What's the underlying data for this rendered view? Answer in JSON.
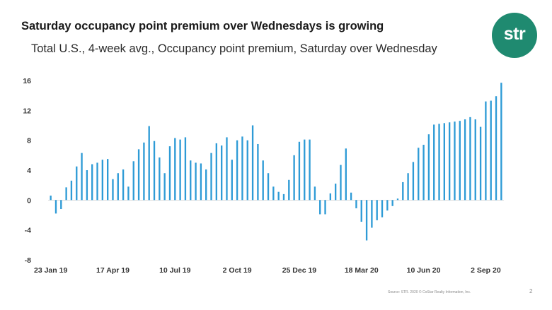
{
  "title": "Saturday occupancy point premium over Wednesdays is growing",
  "subtitle": "Total U.S., 4-week avg., Occupancy point premium, Saturday over Wednesday",
  "logo_text": "str",
  "footer": {
    "source": "Source: STR. 2020 © CoStar Realty Information, Inc.",
    "page": "2"
  },
  "colors": {
    "bar": "#2e9bd6",
    "logo": "#1f8a70",
    "zero_line": "#c8c8c8"
  },
  "chart_data": {
    "type": "bar",
    "ylim": [
      -8,
      16
    ],
    "yticks": [
      16,
      12,
      8,
      4,
      0,
      -4,
      -8
    ],
    "x_tick_labels": [
      "23 Jan 19",
      "17 Apr 19",
      "10 Jul 19",
      "2 Oct 19",
      "25 Dec 19",
      "18 Mar 20",
      "10 Jun 20",
      "2 Sep 20"
    ],
    "x_tick_index": [
      0,
      12,
      24,
      36,
      48,
      60,
      72,
      84
    ],
    "grid": false,
    "legend": "none",
    "values": [
      0.6,
      -1.8,
      -1.2,
      1.7,
      2.6,
      4.5,
      6.3,
      4.0,
      4.8,
      5.0,
      5.4,
      5.5,
      2.8,
      3.6,
      4.1,
      1.8,
      5.2,
      6.8,
      7.7,
      9.9,
      7.9,
      5.7,
      3.6,
      7.2,
      8.3,
      8.1,
      8.4,
      5.3,
      5.0,
      4.9,
      4.1,
      6.3,
      7.6,
      7.3,
      8.4,
      5.4,
      8.0,
      8.5,
      8.0,
      10.0,
      7.5,
      5.3,
      3.6,
      1.8,
      1.1,
      0.8,
      2.7,
      6.0,
      7.8,
      8.1,
      8.1,
      1.8,
      -1.9,
      -1.9,
      0.9,
      2.2,
      4.7,
      6.9,
      1.0,
      -1.1,
      -2.9,
      -5.4,
      -3.7,
      -2.7,
      -2.3,
      -1.4,
      -0.8,
      0.2,
      2.4,
      3.6,
      5.1,
      7.0,
      7.4,
      8.8,
      10.1,
      10.2,
      10.3,
      10.4,
      10.5,
      10.6,
      10.8,
      11.1,
      10.8,
      9.8,
      13.2,
      13.3,
      13.9,
      15.7
    ]
  }
}
